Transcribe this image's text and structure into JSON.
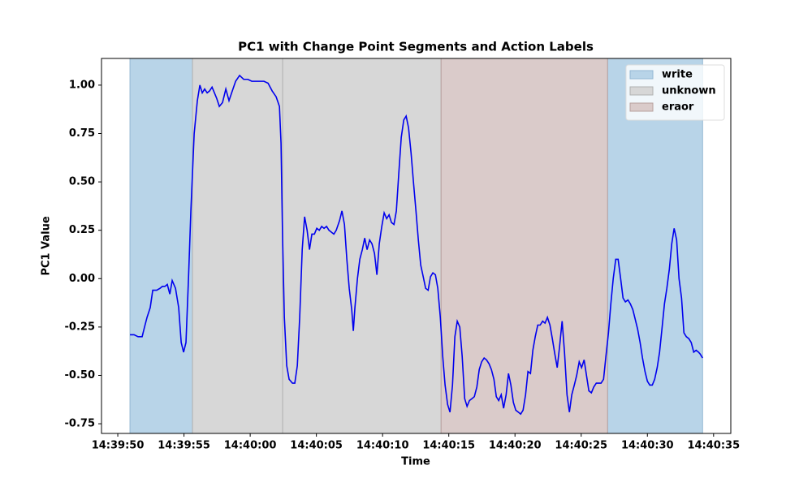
{
  "chart_data": {
    "type": "line",
    "title": "PC1 with Change Point Segments and Action Labels",
    "xlabel": "Time",
    "ylabel": "PC1 Value",
    "xlim": [
      48.77,
      96.3
    ],
    "ylim": [
      -0.8,
      1.138
    ],
    "xticks": [
      {
        "value": 50,
        "label": "14:39:50"
      },
      {
        "value": 55,
        "label": "14:39:55"
      },
      {
        "value": 60,
        "label": "14:40:00"
      },
      {
        "value": 65,
        "label": "14:40:05"
      },
      {
        "value": 70,
        "label": "14:40:10"
      },
      {
        "value": 75,
        "label": "14:40:15"
      },
      {
        "value": 80,
        "label": "14:40:20"
      },
      {
        "value": 85,
        "label": "14:40:25"
      },
      {
        "value": 90,
        "label": "14:40:30"
      },
      {
        "value": 95,
        "label": "14:40:35"
      }
    ],
    "yticks": [
      {
        "value": -0.75,
        "label": "-0.75"
      },
      {
        "value": -0.5,
        "label": "-0.50"
      },
      {
        "value": -0.25,
        "label": "-0.25"
      },
      {
        "value": 0,
        "label": "0.00"
      },
      {
        "value": 0.25,
        "label": "0.25"
      },
      {
        "value": 0.5,
        "label": "0.50"
      },
      {
        "value": 0.75,
        "label": "0.75"
      },
      {
        "value": 1,
        "label": "1.00"
      }
    ],
    "legend_position": "upper right",
    "segments": [
      {
        "name": "write",
        "color": "#b8d4e8",
        "edge": "#93b7d3",
        "spans": [
          [
            50.92,
            55.64
          ],
          [
            86.99,
            94.17
          ]
        ]
      },
      {
        "name": "unknown",
        "color": "#d7d7d7",
        "edge": "#b0b0b0",
        "spans": [
          [
            55.64,
            62.45
          ],
          [
            62.45,
            74.42
          ]
        ]
      },
      {
        "name": "eraor",
        "color": "#dacbca",
        "edge": "#b8a09e",
        "spans": [
          [
            74.42,
            86.99
          ]
        ]
      }
    ],
    "series": [
      {
        "color": "#0000ee",
        "x": [
          50.92,
          51.23,
          51.53,
          51.84,
          52.02,
          52.21,
          52.45,
          52.64,
          52.94,
          53.19,
          53.37,
          53.56,
          53.74,
          53.93,
          54.11,
          54.36,
          54.6,
          54.79,
          54.97,
          55.15,
          55.34,
          55.52,
          55.77,
          56.01,
          56.2,
          56.38,
          56.56,
          56.75,
          56.93,
          57.12,
          57.3,
          57.48,
          57.67,
          57.91,
          58.16,
          58.4,
          58.65,
          58.9,
          59.2,
          59.51,
          59.82,
          60.12,
          60.43,
          60.74,
          61.04,
          61.35,
          61.66,
          61.96,
          62.21,
          62.33,
          62.45,
          62.58,
          62.76,
          62.94,
          63.19,
          63.37,
          63.56,
          63.74,
          63.93,
          64.11,
          64.3,
          64.48,
          64.66,
          64.85,
          65.03,
          65.22,
          65.4,
          65.58,
          65.77,
          65.95,
          66.14,
          66.32,
          66.5,
          66.75,
          66.93,
          67.12,
          67.3,
          67.48,
          67.67,
          67.79,
          67.91,
          68.1,
          68.28,
          68.47,
          68.65,
          68.83,
          69.02,
          69.2,
          69.39,
          69.57,
          69.75,
          69.94,
          70.12,
          70.31,
          70.49,
          70.67,
          70.86,
          71.04,
          71.23,
          71.41,
          71.6,
          71.78,
          71.96,
          72.15,
          72.33,
          72.52,
          72.7,
          72.88,
          73.07,
          73.25,
          73.44,
          73.62,
          73.8,
          73.99,
          74.17,
          74.36,
          74.54,
          74.72,
          74.91,
          75.09,
          75.28,
          75.46,
          75.64,
          75.83,
          76.01,
          76.2,
          76.38,
          76.56,
          76.75,
          76.93,
          77.12,
          77.3,
          77.48,
          77.67,
          77.85,
          78.04,
          78.22,
          78.41,
          78.59,
          78.77,
          78.96,
          79.14,
          79.33,
          79.51,
          79.69,
          79.88,
          80.06,
          80.25,
          80.43,
          80.61,
          80.8,
          80.98,
          81.17,
          81.35,
          81.53,
          81.72,
          81.9,
          82.09,
          82.27,
          82.45,
          82.64,
          82.82,
          83.01,
          83.19,
          83.37,
          83.56,
          83.74,
          83.93,
          84.11,
          84.29,
          84.48,
          84.66,
          84.85,
          85.03,
          85.22,
          85.4,
          85.58,
          85.77,
          85.95,
          86.14,
          86.32,
          86.5,
          86.69,
          86.87,
          87.06,
          87.24,
          87.42,
          87.61,
          87.79,
          87.98,
          88.16,
          88.34,
          88.53,
          88.71,
          88.9,
          89.08,
          89.26,
          89.45,
          89.63,
          89.82,
          90.0,
          90.18,
          90.37,
          90.55,
          90.74,
          90.92,
          91.1,
          91.29,
          91.47,
          91.66,
          91.84,
          92.02,
          92.21,
          92.39,
          92.58,
          92.76,
          92.94,
          93.13,
          93.31,
          93.5,
          93.68,
          93.86,
          93.99,
          94.17
        ],
        "values": [
          -0.29,
          -0.29,
          -0.3,
          -0.3,
          -0.25,
          -0.2,
          -0.15,
          -0.06,
          -0.06,
          -0.05,
          -0.04,
          -0.04,
          -0.03,
          -0.08,
          -0.01,
          -0.05,
          -0.15,
          -0.33,
          -0.38,
          -0.33,
          0.0,
          0.35,
          0.75,
          0.92,
          1.0,
          0.96,
          0.98,
          0.96,
          0.97,
          0.99,
          0.96,
          0.93,
          0.89,
          0.91,
          0.98,
          0.92,
          0.97,
          1.02,
          1.05,
          1.03,
          1.03,
          1.02,
          1.02,
          1.02,
          1.02,
          1.01,
          0.97,
          0.94,
          0.89,
          0.7,
          0.2,
          -0.2,
          -0.45,
          -0.52,
          -0.54,
          -0.54,
          -0.45,
          -0.2,
          0.15,
          0.32,
          0.25,
          0.15,
          0.23,
          0.23,
          0.26,
          0.25,
          0.27,
          0.26,
          0.27,
          0.25,
          0.24,
          0.23,
          0.25,
          0.3,
          0.35,
          0.28,
          0.1,
          -0.05,
          -0.16,
          -0.27,
          -0.15,
          0.0,
          0.1,
          0.15,
          0.21,
          0.15,
          0.2,
          0.18,
          0.13,
          0.02,
          0.18,
          0.27,
          0.34,
          0.31,
          0.33,
          0.29,
          0.28,
          0.35,
          0.55,
          0.73,
          0.82,
          0.84,
          0.78,
          0.65,
          0.5,
          0.35,
          0.2,
          0.07,
          0.01,
          -0.05,
          -0.06,
          0.01,
          0.03,
          0.02,
          -0.05,
          -0.2,
          -0.4,
          -0.55,
          -0.65,
          -0.69,
          -0.55,
          -0.3,
          -0.22,
          -0.25,
          -0.4,
          -0.62,
          -0.66,
          -0.63,
          -0.62,
          -0.61,
          -0.56,
          -0.47,
          -0.43,
          -0.41,
          -0.42,
          -0.44,
          -0.47,
          -0.52,
          -0.61,
          -0.63,
          -0.6,
          -0.67,
          -0.6,
          -0.49,
          -0.55,
          -0.64,
          -0.68,
          -0.69,
          -0.7,
          -0.68,
          -0.6,
          -0.48,
          -0.49,
          -0.37,
          -0.3,
          -0.24,
          -0.24,
          -0.22,
          -0.23,
          -0.2,
          -0.24,
          -0.31,
          -0.39,
          -0.46,
          -0.35,
          -0.22,
          -0.38,
          -0.6,
          -0.69,
          -0.6,
          -0.55,
          -0.5,
          -0.43,
          -0.46,
          -0.42,
          -0.5,
          -0.58,
          -0.59,
          -0.56,
          -0.54,
          -0.54,
          -0.54,
          -0.52,
          -0.4,
          -0.28,
          -0.13,
          0.0,
          0.1,
          0.1,
          0.0,
          -0.1,
          -0.12,
          -0.11,
          -0.13,
          -0.16,
          -0.21,
          -0.26,
          -0.33,
          -0.41,
          -0.48,
          -0.53,
          -0.55,
          -0.55,
          -0.52,
          -0.46,
          -0.38,
          -0.26,
          -0.13,
          -0.05,
          0.05,
          0.18,
          0.26,
          0.2,
          0.0,
          -0.1,
          -0.28,
          -0.3,
          -0.31,
          -0.33,
          -0.38,
          -0.37,
          -0.38,
          -0.39,
          -0.41
        ]
      }
    ]
  }
}
